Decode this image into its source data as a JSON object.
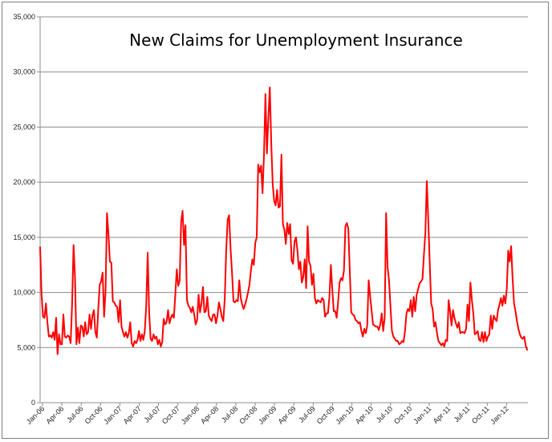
{
  "chart_data": {
    "type": "line",
    "title": "New Claims for Unemployment Insurance",
    "xlabel": "",
    "ylabel": "",
    "ylim": [
      0,
      35000
    ],
    "yticks": [
      0,
      5000,
      10000,
      15000,
      20000,
      25000,
      30000,
      35000
    ],
    "ytick_labels": [
      "0",
      "5,000",
      "10,000",
      "15,000",
      "20,000",
      "25,000",
      "30,000",
      "35,000"
    ],
    "xtick_labels": [
      "Jan-06",
      "Apr-06",
      "Jul-06",
      "Oct-06",
      "Jan-07",
      "Apr-07",
      "Jul-07",
      "Oct-07",
      "Jan-08",
      "Apr-08",
      "Jul-08",
      "Oct-08",
      "Jan-09",
      "Apr-09",
      "Jul-09",
      "Oct-09",
      "Jan-10",
      "Apr-10",
      "Jul-10",
      "Oct-10",
      "Jan-11",
      "Apr-11",
      "Jul-11",
      "Oct-11",
      "Jan-12"
    ],
    "grid": true,
    "legend": "none",
    "series_color": "#ff0000",
    "series": [
      {
        "values": [
          14100,
          9800,
          7800,
          7700,
          9000,
          7300,
          6000,
          6100,
          5900,
          6400,
          5700,
          7700,
          4400,
          6200,
          5300,
          5300,
          8000,
          6000,
          5900,
          6100,
          6000,
          5400,
          8900,
          14300,
          11300,
          5300,
          6800,
          5400,
          7000,
          6900,
          6000,
          7300,
          6200,
          6400,
          8000,
          6700,
          7900,
          8400,
          6400,
          5900,
          8500,
          10700,
          11000,
          11800,
          7800,
          10100,
          17200,
          15300,
          12800,
          12700,
          9200,
          9100,
          8800,
          8700,
          7300,
          9300,
          6900,
          6400,
          6000,
          6400,
          5900,
          6300,
          7300,
          5400,
          5100,
          5600,
          5400,
          5700,
          6500,
          5600,
          6200,
          5700,
          6500,
          8800,
          13600,
          8200,
          5800,
          5600,
          6200,
          5800,
          6000,
          5300,
          5700,
          5100,
          5500,
          7600,
          7100,
          7300,
          8400,
          7200,
          7700,
          8000,
          7700,
          9800,
          12100,
          10600,
          11100,
          16400,
          17400,
          14300,
          16100,
          9300,
          8800,
          8600,
          8200,
          8700,
          8000,
          7100,
          7500,
          9800,
          8200,
          9000,
          10500,
          8200,
          8300,
          9600,
          7900,
          7600,
          7400,
          8000,
          8000,
          7200,
          7900,
          9100,
          8500,
          7800,
          7400,
          9400,
          13800,
          16600,
          17000,
          14000,
          11800,
          9200,
          9100,
          9300,
          9200,
          11100,
          9500,
          8900,
          8500,
          8900,
          9400,
          10000,
          10700,
          12000,
          13000,
          12500,
          14500,
          15000,
          21600,
          20900,
          21500,
          19000,
          22500,
          28000,
          22600,
          25800,
          28600,
          23500,
          19800,
          18300,
          17900,
          19300,
          17700,
          17800,
          22500,
          16200,
          15700,
          14400,
          16300,
          15300,
          16200,
          12900,
          12600,
          14600,
          15000,
          13800,
          12100,
          12800,
          10900,
          11400,
          13000,
          10400,
          16000,
          12800,
          12400,
          10700,
          11700,
          9500,
          9000,
          9300,
          9200,
          9100,
          9500,
          9300,
          7800,
          8100,
          8100,
          9600,
          12500,
          10200,
          8300,
          8300,
          7700,
          9200,
          10900,
          11300,
          11100,
          12000,
          16000,
          16300,
          15800,
          12000,
          8200,
          8000,
          7900,
          7500,
          7400,
          7200,
          7300,
          6500,
          6000,
          6700,
          6300,
          7000,
          11100,
          9700,
          8400,
          7100,
          7000,
          6900,
          6900,
          6600,
          7100,
          8100,
          6500,
          7700,
          17200,
          12300,
          11100,
          8700,
          6500,
          6000,
          5800,
          5600,
          5600,
          5300,
          5400,
          5600,
          5500,
          6500,
          8100,
          8500,
          8300,
          9300,
          7800,
          9600,
          8300,
          9800,
          10300,
          10800,
          11000,
          11200,
          13400,
          15400,
          20100,
          16600,
          12700,
          9000,
          8500,
          6900,
          7300,
          6300,
          5600,
          5400,
          5200,
          5400,
          5100,
          5700,
          5600,
          9300,
          8300,
          7000,
          8400,
          7700,
          7200,
          6800,
          7300,
          6300,
          6400,
          6400,
          6300,
          6700,
          8900,
          7400,
          10900,
          9300,
          8100,
          6200,
          6300,
          6500,
          5700,
          5600,
          6400,
          5500,
          6400,
          5600,
          6000,
          6200,
          7900,
          6700,
          7900,
          7600,
          7400,
          8400,
          8900,
          9500,
          8800,
          9700,
          9000,
          10300,
          13800,
          12800,
          14200,
          11300,
          9000,
          8300,
          7400,
          6700,
          6200,
          5900,
          5800,
          6000,
          5200,
          4800
        ]
      }
    ]
  }
}
